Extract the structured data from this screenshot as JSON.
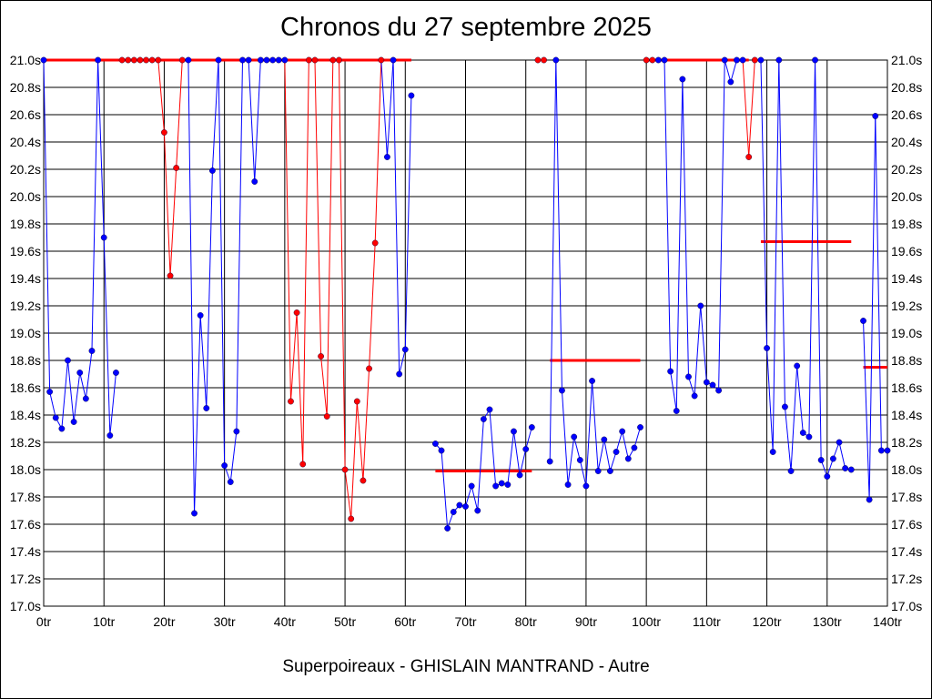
{
  "chart_data": {
    "type": "line",
    "title": "Chronos du 27 septembre 2025",
    "caption": "Superpoireaux - GHISLAIN MANTRAND - Autre",
    "x_unit": "tr",
    "y_unit": "s",
    "xlim": [
      0,
      140
    ],
    "ylim": [
      17.0,
      21.0
    ],
    "x_ticks": [
      0,
      10,
      20,
      30,
      40,
      50,
      60,
      70,
      80,
      90,
      100,
      110,
      120,
      130,
      140
    ],
    "y_ticks": [
      17.0,
      17.2,
      17.4,
      17.6,
      17.8,
      18.0,
      18.2,
      18.4,
      18.6,
      18.8,
      19.0,
      19.2,
      19.4,
      19.6,
      19.8,
      20.0,
      20.2,
      20.4,
      20.6,
      20.8,
      21.0
    ],
    "grid": true,
    "colors": {
      "normal": "#0000ff",
      "highlight": "#ff0000",
      "average": "#ff0000"
    },
    "segments": [
      {
        "points": [
          [
            0,
            21.0,
            "b"
          ],
          [
            1,
            18.57,
            "b"
          ],
          [
            2,
            18.38,
            "b"
          ],
          [
            3,
            18.3,
            "b"
          ],
          [
            4,
            18.8,
            "b"
          ],
          [
            5,
            18.35,
            "b"
          ],
          [
            6,
            18.71,
            "b"
          ],
          [
            7,
            18.52,
            "b"
          ],
          [
            8,
            18.87,
            "b"
          ],
          [
            9,
            21.0,
            "b"
          ],
          [
            10,
            19.7,
            "b"
          ],
          [
            11,
            18.25,
            "b"
          ],
          [
            12,
            18.71,
            "b"
          ]
        ]
      },
      {
        "points": [
          [
            13,
            21.0,
            "r"
          ],
          [
            14,
            21.0,
            "r"
          ],
          [
            15,
            21.0,
            "r"
          ],
          [
            16,
            21.0,
            "r"
          ],
          [
            17,
            21.0,
            "r"
          ],
          [
            18,
            21.0,
            "r"
          ],
          [
            19,
            21.0,
            "r"
          ],
          [
            20,
            20.47,
            "r"
          ],
          [
            21,
            19.42,
            "r"
          ],
          [
            22,
            20.21,
            "r"
          ],
          [
            23,
            21.0,
            "r"
          ],
          [
            24,
            21.0,
            "b"
          ],
          [
            25,
            17.68,
            "b"
          ],
          [
            26,
            19.13,
            "b"
          ],
          [
            27,
            18.45,
            "b"
          ],
          [
            28,
            20.19,
            "b"
          ],
          [
            29,
            21.0,
            "b"
          ],
          [
            30,
            18.03,
            "b"
          ],
          [
            31,
            17.91,
            "b"
          ],
          [
            32,
            18.28,
            "b"
          ],
          [
            33,
            21.0,
            "b"
          ],
          [
            34,
            21.0,
            "b"
          ],
          [
            35,
            20.11,
            "b"
          ],
          [
            36,
            21.0,
            "b"
          ],
          [
            37,
            21.0,
            "b"
          ],
          [
            38,
            21.0,
            "b"
          ],
          [
            39,
            21.0,
            "b"
          ],
          [
            40,
            21.0,
            "b"
          ],
          [
            41,
            18.5,
            "r"
          ],
          [
            42,
            19.15,
            "r"
          ],
          [
            43,
            18.04,
            "r"
          ],
          [
            44,
            21.0,
            "r"
          ],
          [
            45,
            21.0,
            "r"
          ],
          [
            46,
            18.83,
            "r"
          ],
          [
            47,
            18.39,
            "r"
          ],
          [
            48,
            21.0,
            "r"
          ],
          [
            49,
            21.0,
            "r"
          ],
          [
            50,
            18.0,
            "r"
          ],
          [
            51,
            17.64,
            "r"
          ],
          [
            52,
            18.5,
            "r"
          ],
          [
            53,
            17.92,
            "r"
          ],
          [
            54,
            18.74,
            "r"
          ],
          [
            55,
            19.66,
            "r"
          ],
          [
            56,
            21.0,
            "r"
          ],
          [
            57,
            20.29,
            "b"
          ],
          [
            58,
            21.0,
            "b"
          ],
          [
            59,
            18.7,
            "b"
          ],
          [
            60,
            18.88,
            "b"
          ],
          [
            61,
            20.74,
            "b"
          ]
        ]
      },
      {
        "points": [
          [
            65,
            18.19,
            "b"
          ],
          [
            66,
            18.14,
            "b"
          ],
          [
            67,
            17.57,
            "b"
          ],
          [
            68,
            17.69,
            "b"
          ],
          [
            69,
            17.74,
            "b"
          ],
          [
            70,
            17.73,
            "b"
          ],
          [
            71,
            17.88,
            "b"
          ],
          [
            72,
            17.7,
            "b"
          ],
          [
            73,
            18.37,
            "b"
          ],
          [
            74,
            18.44,
            "b"
          ],
          [
            75,
            17.88,
            "b"
          ],
          [
            76,
            17.9,
            "b"
          ],
          [
            77,
            17.89,
            "b"
          ],
          [
            78,
            18.28,
            "b"
          ],
          [
            79,
            17.96,
            "b"
          ],
          [
            80,
            18.15,
            "b"
          ],
          [
            81,
            18.31,
            "b"
          ]
        ]
      },
      {
        "points": [
          [
            82,
            21.0,
            "r"
          ],
          [
            83,
            21.0,
            "r"
          ]
        ]
      },
      {
        "points": [
          [
            84,
            18.06,
            "b"
          ],
          [
            85,
            21.0,
            "b"
          ],
          [
            86,
            18.58,
            "b"
          ],
          [
            87,
            17.89,
            "b"
          ],
          [
            88,
            18.24,
            "b"
          ],
          [
            89,
            18.07,
            "b"
          ],
          [
            90,
            17.88,
            "b"
          ],
          [
            91,
            18.65,
            "b"
          ],
          [
            92,
            17.99,
            "b"
          ],
          [
            93,
            18.22,
            "b"
          ],
          [
            94,
            17.99,
            "b"
          ],
          [
            95,
            18.13,
            "b"
          ],
          [
            96,
            18.28,
            "b"
          ],
          [
            97,
            18.08,
            "b"
          ],
          [
            98,
            18.16,
            "b"
          ],
          [
            99,
            18.31,
            "b"
          ]
        ]
      },
      {
        "points": [
          [
            100,
            21.0,
            "r"
          ],
          [
            101,
            21.0,
            "r"
          ],
          [
            102,
            21.0,
            "b"
          ],
          [
            103,
            21.0,
            "b"
          ],
          [
            104,
            18.72,
            "b"
          ],
          [
            105,
            18.43,
            "b"
          ],
          [
            106,
            20.86,
            "b"
          ],
          [
            107,
            18.68,
            "b"
          ],
          [
            108,
            18.54,
            "b"
          ],
          [
            109,
            19.2,
            "b"
          ],
          [
            110,
            18.64,
            "b"
          ],
          [
            111,
            18.62,
            "b"
          ],
          [
            112,
            18.58,
            "b"
          ],
          [
            113,
            21.0,
            "b"
          ],
          [
            114,
            20.84,
            "b"
          ],
          [
            115,
            21.0,
            "b"
          ],
          [
            116,
            21.0,
            "b"
          ],
          [
            117,
            20.29,
            "r"
          ],
          [
            118,
            21.0,
            "r"
          ],
          [
            119,
            21.0,
            "b"
          ],
          [
            120,
            18.89,
            "b"
          ],
          [
            121,
            18.13,
            "b"
          ],
          [
            122,
            21.0,
            "b"
          ],
          [
            123,
            18.46,
            "b"
          ],
          [
            124,
            17.99,
            "b"
          ],
          [
            125,
            18.76,
            "b"
          ],
          [
            126,
            18.27,
            "b"
          ],
          [
            127,
            18.24,
            "b"
          ],
          [
            128,
            21.0,
            "b"
          ],
          [
            129,
            18.07,
            "b"
          ],
          [
            130,
            17.95,
            "b"
          ],
          [
            131,
            18.08,
            "b"
          ],
          [
            132,
            18.2,
            "b"
          ],
          [
            133,
            18.01,
            "b"
          ],
          [
            134,
            18.0,
            "b"
          ]
        ]
      },
      {
        "points": [
          [
            136,
            19.09,
            "b"
          ],
          [
            137,
            17.78,
            "b"
          ],
          [
            138,
            20.59,
            "b"
          ],
          [
            139,
            18.14,
            "b"
          ],
          [
            140,
            18.14,
            "b"
          ]
        ]
      }
    ],
    "average_lines": [
      {
        "x": [
          0,
          61
        ],
        "y": 21.0
      },
      {
        "x": [
          65,
          81
        ],
        "y": 17.99
      },
      {
        "x": [
          84,
          99
        ],
        "y": 18.8
      },
      {
        "x": [
          100,
          117
        ],
        "y": 21.0
      },
      {
        "x": [
          119,
          134
        ],
        "y": 19.67
      },
      {
        "x": [
          136,
          140
        ],
        "y": 18.75
      }
    ],
    "blue_segment_on_cap": {
      "x": [
        20,
        61
      ],
      "y": 21.0
    }
  }
}
